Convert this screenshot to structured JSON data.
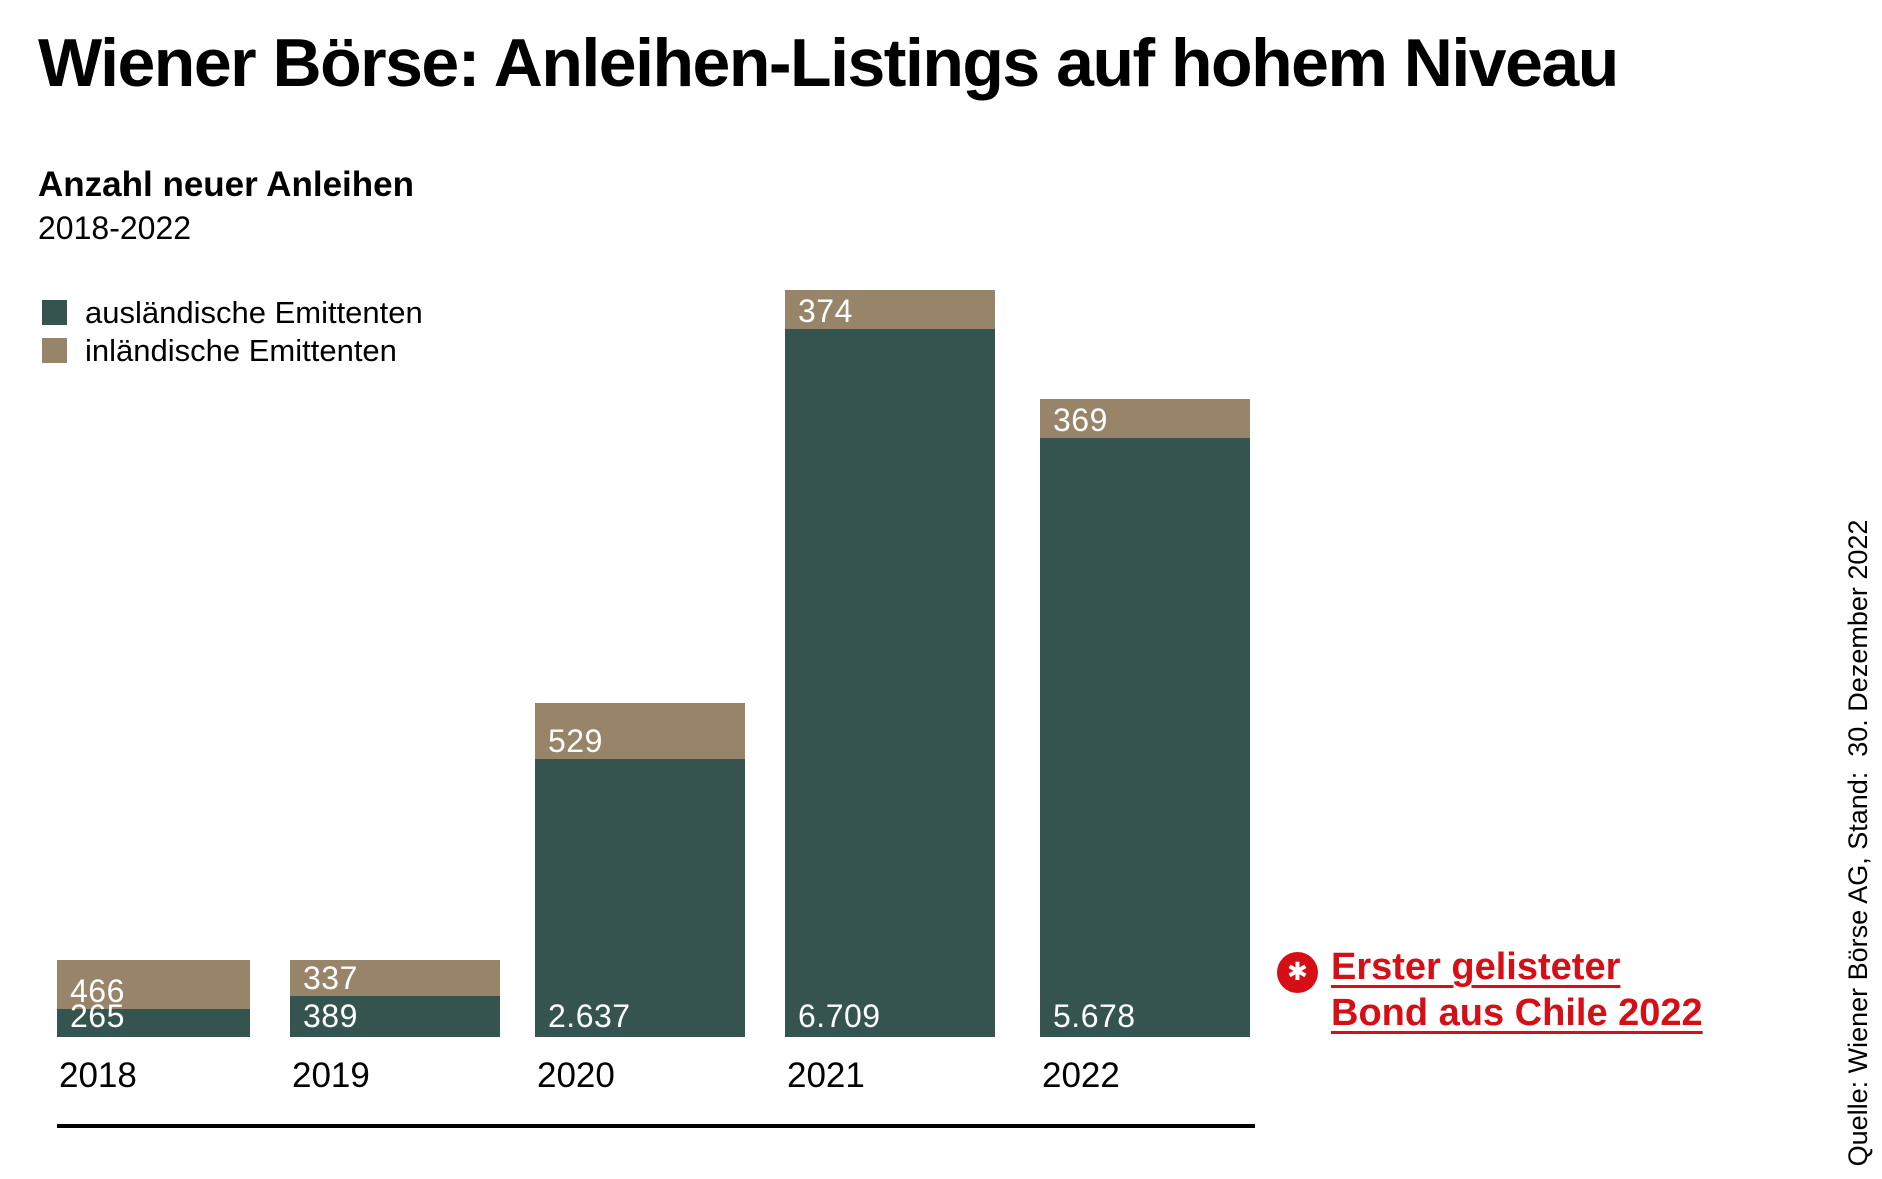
{
  "title": "Wiener Börse: Anleihen-Listings auf hohem Niveau",
  "subtitle": "Anzahl neuer Anleihen",
  "period": "2018-2022",
  "legend": [
    {
      "label": "ausländische Emittenten",
      "color": "#35544f"
    },
    {
      "label": "inländische Emittenten",
      "color": "#988468"
    }
  ],
  "annotation": {
    "marker": "✱",
    "line1": "Erster gelisteter",
    "line2": "Bond aus Chile 2022",
    "color": "#d50f15"
  },
  "source": "Quelle: Wiener Börse AG, Stand:  30. Dezember 2022",
  "chart_data": {
    "type": "bar",
    "stacked": true,
    "title": "Anzahl neuer Anleihen 2018-2022",
    "categories": [
      "2018",
      "2019",
      "2020",
      "2021",
      "2022"
    ],
    "series": [
      {
        "name": "ausländische Emittenten",
        "color": "#35544f",
        "values": [
          265,
          389,
          2637,
          6709,
          5678
        ],
        "labels": [
          "265",
          "389",
          "2.637",
          "6.709",
          "5.678"
        ]
      },
      {
        "name": "inländische Emittenten",
        "color": "#988468",
        "values": [
          466,
          337,
          529,
          374,
          369
        ],
        "labels": [
          "466",
          "337",
          "529",
          "374",
          "369"
        ]
      }
    ],
    "totals": [
      731,
      726,
      3166,
      7083,
      6047
    ],
    "value_labels": "inside-white",
    "legend_position": "top-left",
    "grid": false,
    "axes": "x-baseline-only"
  }
}
